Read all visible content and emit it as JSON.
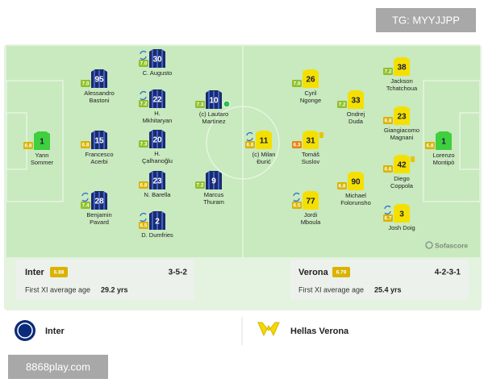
{
  "watermark_top": "TG: MYYJJPP",
  "watermark_bottom": "8868play.com",
  "brand": "Sofascore",
  "home": {
    "name": "Inter",
    "rating": "6.88",
    "formation": "3-5-2",
    "age_label": "First XI average age",
    "age": "29.2 yrs",
    "players": [
      {
        "number": "1",
        "name": [
          "Yann",
          "Sommer"
        ],
        "rating": "6.8"
      },
      {
        "number": "95",
        "name": [
          "Alessandro",
          "Bastoni"
        ],
        "rating": "7.0"
      },
      {
        "number": "15",
        "name": [
          "Francesco",
          "Acerbi"
        ],
        "rating": "6.8"
      },
      {
        "number": "28",
        "name": [
          "Benjamin",
          "Pavard"
        ],
        "rating": "7.4"
      },
      {
        "number": "30",
        "name": [
          "C. Augusto"
        ],
        "rating": "7.0"
      },
      {
        "number": "22",
        "name": [
          "H.",
          "Mkhitaryan"
        ],
        "rating": "7.2"
      },
      {
        "number": "20",
        "name": [
          "H.",
          "Çalhanoğlu"
        ],
        "rating": "7.3"
      },
      {
        "number": "23",
        "name": [
          "N. Barella"
        ],
        "rating": "6.8"
      },
      {
        "number": "2",
        "name": [
          "D. Dumfries"
        ],
        "rating": "6.5"
      },
      {
        "number": "10",
        "name": [
          "(c) Lautaro",
          "Martínez"
        ],
        "rating": "7.3"
      },
      {
        "number": "9",
        "name": [
          "Marcus",
          "Thuram"
        ],
        "rating": "7.2"
      }
    ]
  },
  "away": {
    "name": "Verona",
    "full_name": "Hellas Verona",
    "rating": "6.79",
    "formation": "4-2-3-1",
    "age_label": "First XI average age",
    "age": "25.4 yrs",
    "players": [
      {
        "number": "1",
        "name": [
          "Lorenzo",
          "Montipò"
        ],
        "rating": "6.8"
      },
      {
        "number": "11",
        "name": [
          "(c) Milan",
          "Đurić"
        ],
        "rating": "6.6"
      },
      {
        "number": "26",
        "name": [
          "Cyril",
          "Ngonge"
        ],
        "rating": "7.0"
      },
      {
        "number": "31",
        "name": [
          "Tomáš",
          "Suslov"
        ],
        "rating": "6.3"
      },
      {
        "number": "77",
        "name": [
          "Jordi",
          "Mboula"
        ],
        "rating": "6.5"
      },
      {
        "number": "33",
        "name": [
          "Ondrej",
          "Duda"
        ],
        "rating": "7.2"
      },
      {
        "number": "90",
        "name": [
          "Michael",
          "Folorunsho"
        ],
        "rating": "6.8"
      },
      {
        "number": "38",
        "name": [
          "Jackson",
          "Tchatchoua"
        ],
        "rating": "7.2"
      },
      {
        "number": "23",
        "name": [
          "Giangiacomo",
          "Magnani"
        ],
        "rating": "6.8"
      },
      {
        "number": "42",
        "name": [
          "Diego",
          "Coppola"
        ],
        "rating": "6.6"
      },
      {
        "number": "3",
        "name": [
          "Josh Doig"
        ],
        "rating": "6.7"
      }
    ]
  }
}
